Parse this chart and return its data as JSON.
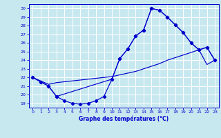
{
  "title": "Graphe des températures (°C)",
  "bg_color": "#c8e8f0",
  "line_color": "#0000cc",
  "grid_color": "#ffffff",
  "xlim": [
    -0.5,
    23.5
  ],
  "ylim": [
    18.5,
    30.5
  ],
  "yticks": [
    19,
    20,
    21,
    22,
    23,
    24,
    25,
    26,
    27,
    28,
    29,
    30
  ],
  "xticks": [
    0,
    1,
    2,
    3,
    4,
    5,
    6,
    7,
    8,
    9,
    10,
    11,
    12,
    13,
    14,
    15,
    16,
    17,
    18,
    19,
    20,
    21,
    22,
    23
  ],
  "line1_x": [
    0,
    1,
    2,
    3,
    4,
    5,
    6,
    7,
    8,
    9,
    10,
    11,
    12,
    13,
    14,
    15,
    16,
    17,
    18,
    19,
    20,
    21,
    22,
    23
  ],
  "line1_y": [
    22,
    21.5,
    21.0,
    19.8,
    19.3,
    19.0,
    18.9,
    19.0,
    19.3,
    19.8,
    21.8,
    24.2,
    25.3,
    26.8,
    27.5,
    30.0,
    29.8,
    29.0,
    28.1,
    27.2,
    26.0,
    25.2,
    25.5,
    24.0
  ],
  "line2_x": [
    0,
    1,
    2,
    3,
    10,
    11,
    12,
    13,
    14,
    15,
    16,
    17,
    18,
    19,
    20,
    21,
    22,
    23
  ],
  "line2_y": [
    22,
    21.5,
    21.0,
    19.8,
    21.8,
    24.2,
    25.3,
    26.8,
    27.5,
    30.0,
    29.8,
    29.0,
    28.1,
    27.2,
    26.0,
    25.2,
    25.5,
    24.0
  ],
  "line3_x": [
    0,
    1,
    2,
    3,
    4,
    5,
    6,
    7,
    8,
    9,
    10,
    11,
    12,
    13,
    14,
    15,
    16,
    17,
    18,
    19,
    20,
    21,
    22,
    23
  ],
  "line3_y": [
    22,
    21.6,
    21.2,
    21.4,
    21.5,
    21.6,
    21.7,
    21.8,
    21.9,
    22.0,
    22.1,
    22.3,
    22.5,
    22.7,
    23.0,
    23.3,
    23.6,
    24.0,
    24.3,
    24.6,
    24.9,
    25.2,
    23.5,
    24.0
  ]
}
